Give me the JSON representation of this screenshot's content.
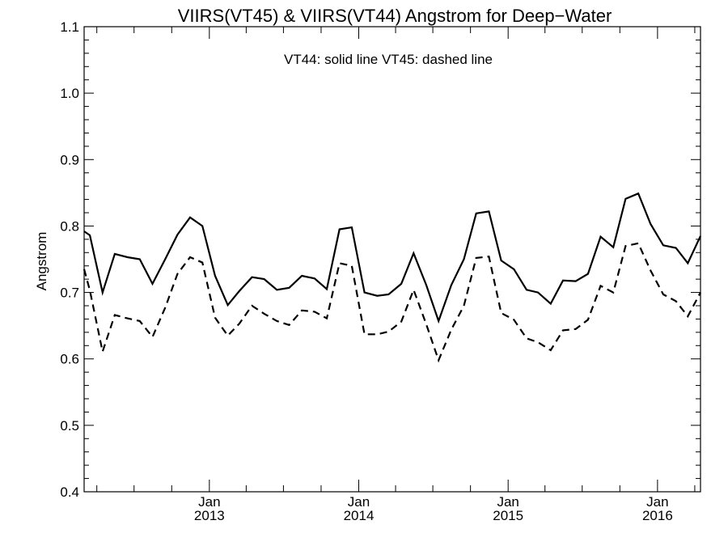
{
  "chart_data": {
    "type": "line",
    "title": "VIIRS(VT45) & VIIRS(VT44)  Angstrom for Deep−Water",
    "annotation": "VT44: solid line   VT45: dashed line",
    "xlabel": "",
    "ylabel": "Angstrom",
    "xlim": [
      "2012-03-01",
      "2016-04-15"
    ],
    "ylim": [
      0.4,
      1.1
    ],
    "yticks": [
      "0.4",
      "0.5",
      "0.6",
      "0.7",
      "0.8",
      "0.9",
      "1.0",
      "1.1"
    ],
    "xticks": [
      {
        "month": "Jan",
        "year": "2013",
        "date": "2013-01-01"
      },
      {
        "month": "Jan",
        "year": "2014",
        "date": "2014-01-01"
      },
      {
        "month": "Jan",
        "year": "2015",
        "date": "2015-01-01"
      },
      {
        "month": "Jan",
        "year": "2016",
        "date": "2016-01-01"
      }
    ],
    "grid": false,
    "x": [
      "2012-03-01",
      "2012-03-15",
      "2012-04-15",
      "2012-05-15",
      "2012-06-15",
      "2012-07-15",
      "2012-08-15",
      "2012-09-15",
      "2012-10-15",
      "2012-11-15",
      "2012-12-15",
      "2013-01-15",
      "2013-02-15",
      "2013-03-15",
      "2013-04-15",
      "2013-05-15",
      "2013-06-15",
      "2013-07-15",
      "2013-08-15",
      "2013-09-15",
      "2013-10-15",
      "2013-11-15",
      "2013-12-15",
      "2014-01-15",
      "2014-02-15",
      "2014-03-15",
      "2014-04-15",
      "2014-05-15",
      "2014-06-15",
      "2014-07-15",
      "2014-08-15",
      "2014-09-15",
      "2014-10-15",
      "2014-11-15",
      "2014-12-15",
      "2015-01-15",
      "2015-02-15",
      "2015-03-15",
      "2015-04-15",
      "2015-05-15",
      "2015-06-15",
      "2015-07-15",
      "2015-08-15",
      "2015-09-15",
      "2015-10-15",
      "2015-11-15",
      "2015-12-15",
      "2016-01-15",
      "2016-02-15",
      "2016-03-15",
      "2016-04-15"
    ],
    "series": [
      {
        "name": "VT44",
        "style": "solid",
        "values": [
          0.792,
          0.786,
          0.7,
          0.758,
          0.753,
          0.75,
          0.713,
          0.75,
          0.787,
          0.813,
          0.8,
          0.725,
          0.681,
          0.702,
          0.723,
          0.72,
          0.704,
          0.707,
          0.725,
          0.721,
          0.705,
          0.795,
          0.798,
          0.7,
          0.695,
          0.697,
          0.713,
          0.759,
          0.711,
          0.657,
          0.711,
          0.75,
          0.819,
          0.822,
          0.748,
          0.735,
          0.704,
          0.7,
          0.683,
          0.718,
          0.717,
          0.728,
          0.784,
          0.768,
          0.841,
          0.849,
          0.803,
          0.771,
          0.767,
          0.744,
          0.785
        ]
      },
      {
        "name": "VT45",
        "style": "dashed",
        "values": [
          0.735,
          0.703,
          0.611,
          0.666,
          0.661,
          0.657,
          0.633,
          0.677,
          0.728,
          0.753,
          0.745,
          0.662,
          0.635,
          0.653,
          0.68,
          0.668,
          0.657,
          0.651,
          0.673,
          0.671,
          0.661,
          0.744,
          0.74,
          0.637,
          0.637,
          0.641,
          0.656,
          0.704,
          0.652,
          0.598,
          0.644,
          0.68,
          0.752,
          0.754,
          0.669,
          0.659,
          0.631,
          0.625,
          0.613,
          0.643,
          0.645,
          0.659,
          0.71,
          0.7,
          0.77,
          0.774,
          0.733,
          0.697,
          0.687,
          0.664,
          0.7
        ]
      }
    ]
  }
}
